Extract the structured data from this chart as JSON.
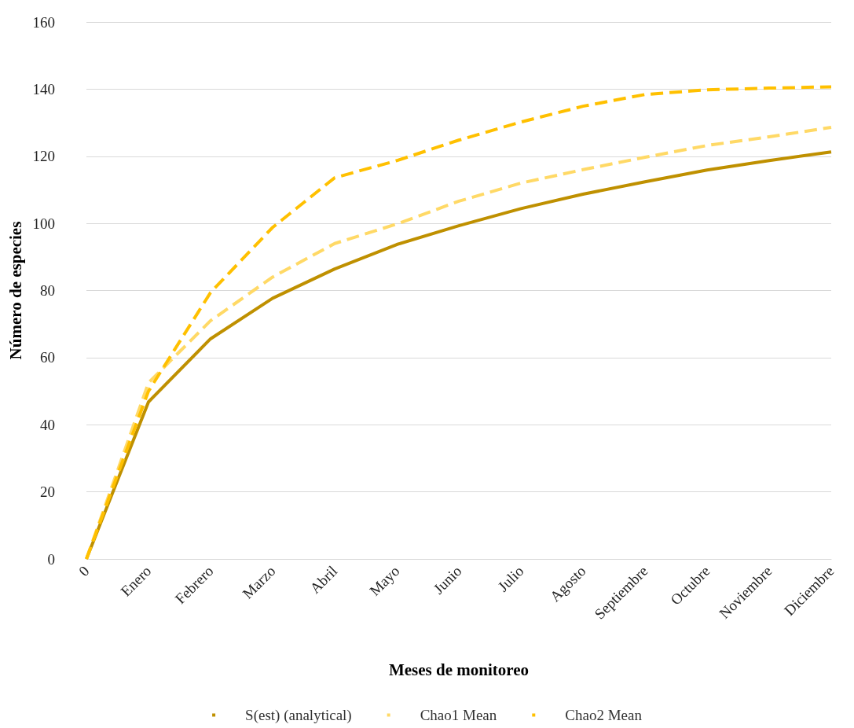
{
  "chart_data": {
    "type": "line",
    "xlabel": "Meses de monitoreo",
    "ylabel": "Número de especies",
    "categories": [
      "0",
      "Enero",
      "Febrero",
      "Marzo",
      "Abril",
      "Mayo",
      "Junio",
      "Julio",
      "Agosto",
      "Septiembre",
      "Octubre",
      "Noviembre",
      "Diciembre"
    ],
    "series": [
      {
        "name": "S(est) (analytical)",
        "color": "#bf9000",
        "line_style": "solid",
        "values": [
          0,
          46.8,
          65.6,
          77.7,
          86.4,
          93.7,
          99.3,
          104.4,
          108.7,
          112.4,
          115.9,
          118.7,
          121.3
        ]
      },
      {
        "name": "Chao1 Mean",
        "color": "#ffd966",
        "line_style": "dashed",
        "values": [
          0,
          52.5,
          71,
          84,
          94,
          99.8,
          106.6,
          112,
          116,
          119.7,
          123.2,
          125.8,
          128.6
        ]
      },
      {
        "name": "Chao2 Mean",
        "color": "#ffc000",
        "line_style": "dashed",
        "values": [
          0,
          50,
          79.4,
          98.8,
          113.6,
          118.7,
          124.8,
          130.2,
          134.9,
          138.4,
          139.8,
          140.3,
          140.7
        ]
      }
    ],
    "ylim": [
      0,
      160
    ],
    "yticks": [
      0,
      20,
      40,
      60,
      80,
      100,
      120,
      140,
      160
    ],
    "grid": "y",
    "legend": "bottom",
    "marker": "none"
  }
}
